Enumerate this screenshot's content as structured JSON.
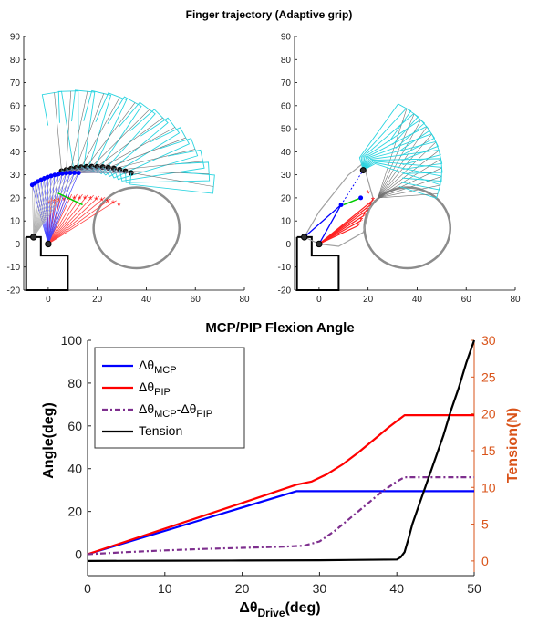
{
  "chart_data": [
    {
      "type": "line",
      "title": "Finger trajectory (Adaptive grip)",
      "panel": "left",
      "xlim": [
        -10,
        80
      ],
      "ylim": [
        -20,
        90
      ],
      "xticks": [
        "0",
        "20",
        "40",
        "60",
        "80"
      ],
      "yticks": [
        "-20",
        "-10",
        "0",
        "10",
        "20",
        "30",
        "40",
        "50",
        "60",
        "70",
        "80",
        "90"
      ],
      "object_circle": {
        "center": [
          36,
          7
        ],
        "radius": 17.5
      },
      "base_joints": [
        [
          -6,
          3
        ],
        [
          0,
          0
        ]
      ],
      "pip_start": [
        -6,
        28
      ],
      "pip_end": [
        17,
        32
      ]
    },
    {
      "type": "line",
      "title": "",
      "panel": "right",
      "xlim": [
        -10,
        80
      ],
      "ylim": [
        -20,
        90
      ],
      "xticks": [
        "0",
        "20",
        "40",
        "60",
        "80"
      ],
      "yticks": [
        "-20",
        "-10",
        "0",
        "10",
        "20",
        "30",
        "40",
        "50",
        "60",
        "70",
        "80",
        "90"
      ],
      "object_circle": {
        "center": [
          36,
          7
        ],
        "radius": 17.5
      },
      "base_joints": [
        [
          -6,
          3
        ],
        [
          0,
          0
        ]
      ],
      "pip_final": [
        9,
        17
      ],
      "dip_final": [
        18,
        32
      ]
    },
    {
      "type": "line",
      "title": "MCP/PIP Flexion Angle",
      "xlabel_main": "Δθ",
      "xlabel_sub": "Drive",
      "xlabel_unit": "(deg)",
      "ylabel": "Angle(deg)",
      "y2label": "Tension(N)",
      "xlim": [
        0,
        50
      ],
      "ylim": [
        -10,
        100
      ],
      "y2lim": [
        -2,
        30
      ],
      "xticks": [
        "0",
        "10",
        "20",
        "30",
        "40",
        "50"
      ],
      "yticks": [
        "0",
        "20",
        "40",
        "60",
        "80",
        "100"
      ],
      "y2ticks": [
        "0",
        "5",
        "10",
        "15",
        "20",
        "25",
        "30"
      ],
      "series": [
        {
          "name": "MCP",
          "color": "#0000FF",
          "dash": "",
          "x": [
            0,
            27,
            50
          ],
          "y": [
            0,
            29.5,
            29.5
          ]
        },
        {
          "name": "PIP",
          "color": "#FF0000",
          "dash": "",
          "x": [
            0,
            10,
            20,
            27,
            29,
            31,
            33,
            35,
            37,
            39,
            41,
            50
          ],
          "y": [
            0,
            12,
            24,
            32.5,
            34,
            37.5,
            42,
            47.5,
            53.5,
            59.5,
            65,
            65
          ]
        },
        {
          "name": "MCP-PIP",
          "color": "#7E2F8E",
          "dash": "6,3,2,3",
          "x": [
            0,
            5,
            10,
            15,
            20,
            25,
            28,
            30,
            32,
            34,
            36,
            38,
            40,
            41,
            50
          ],
          "y": [
            0,
            1,
            1.8,
            2.5,
            3,
            3.5,
            4,
            6,
            11,
            17,
            23,
            29,
            34,
            36,
            36
          ]
        },
        {
          "name": "Tension",
          "color": "#000000",
          "dash": "",
          "axis": "right",
          "x": [
            0,
            10,
            20,
            30,
            40,
            40.5,
            41,
            41.5,
            42,
            43,
            44,
            45,
            46,
            47,
            48,
            49,
            50
          ],
          "y": [
            0,
            0.03,
            0.06,
            0.1,
            0.2,
            0.5,
            1.2,
            3,
            5,
            8,
            11,
            14,
            17,
            20.5,
            23.5,
            27,
            30
          ]
        }
      ],
      "legend": {
        "position": "top-left",
        "entries": [
          {
            "base": "Δθ",
            "sub": "MCP",
            "mid": "",
            "base2": "",
            "sub2": ""
          },
          {
            "base": "Δθ",
            "sub": "PIP",
            "mid": "",
            "base2": "",
            "sub2": ""
          },
          {
            "base": "Δθ",
            "sub": "MCP",
            "mid": "-",
            "base2": "Δθ",
            "sub2": "PIP"
          },
          {
            "base": "Tension",
            "sub": "",
            "mid": "",
            "base2": "",
            "sub2": ""
          }
        ]
      }
    }
  ]
}
